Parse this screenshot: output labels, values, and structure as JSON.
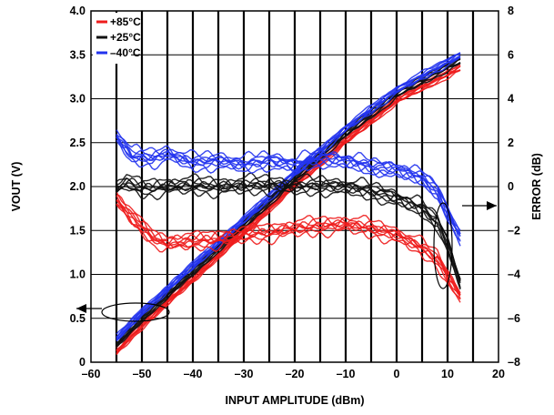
{
  "chart_data": {
    "type": "line",
    "xlabel": "INPUT AMPLITUDE (dBm)",
    "ylabel": "VOUT (V)",
    "y2label": "ERROR (dB)",
    "xlim": [
      -60,
      20
    ],
    "ylim": [
      0,
      4.0
    ],
    "y2lim": [
      -8,
      8
    ],
    "x_ticks": [
      "–60",
      "–50",
      "–40",
      "–30",
      "–20",
      "–10",
      "0",
      "10",
      "20"
    ],
    "y_ticks": [
      "0",
      "0.5",
      "1.0",
      "1.5",
      "2.0",
      "2.5",
      "3.0",
      "3.5",
      "4.0"
    ],
    "y2_ticks": [
      "–8",
      "–6",
      "–4",
      "–2",
      "0",
      "2",
      "4",
      "6",
      "8"
    ],
    "grid": true,
    "legend_position": "top-left",
    "series": [
      {
        "name": "+85°C",
        "color": "#ee1c1c",
        "axis": "left",
        "x": [
          -55,
          -50,
          -40,
          -30,
          -20,
          -10,
          0,
          10,
          12.5
        ],
        "values": [
          0.12,
          0.42,
          0.95,
          1.48,
          2.02,
          2.52,
          2.98,
          3.28,
          3.35
        ]
      },
      {
        "name": "+25°C",
        "color": "#111111",
        "axis": "left",
        "x": [
          -55,
          -50,
          -40,
          -30,
          -20,
          -10,
          0,
          10,
          12.5
        ],
        "values": [
          0.2,
          0.5,
          1.03,
          1.56,
          2.09,
          2.6,
          3.05,
          3.36,
          3.43
        ]
      },
      {
        "name": "–40°C",
        "color": "#2233ee",
        "axis": "left",
        "x": [
          -55,
          -50,
          -40,
          -30,
          -20,
          -10,
          0,
          10,
          12.5
        ],
        "values": [
          0.27,
          0.57,
          1.1,
          1.62,
          2.15,
          2.66,
          3.1,
          3.42,
          3.5
        ]
      },
      {
        "name": "+85°C error",
        "color": "#ee1c1c",
        "axis": "right",
        "x": [
          -55,
          -52,
          -48,
          -45,
          -40,
          -35,
          -30,
          -25,
          -20,
          -15,
          -10,
          -5,
          0,
          5,
          8,
          10,
          12.5
        ],
        "values": [
          -0.6,
          -1.4,
          -2.3,
          -2.6,
          -2.5,
          -2.4,
          -2.2,
          -2.1,
          -1.9,
          -1.8,
          -1.7,
          -1.9,
          -2.2,
          -2.8,
          -3.3,
          -4.1,
          -5.0
        ]
      },
      {
        "name": "+25°C error",
        "color": "#111111",
        "axis": "right",
        "x": [
          -55,
          -53,
          -50,
          -45,
          -40,
          -35,
          -30,
          -25,
          -20,
          -15,
          -10,
          -5,
          0,
          5,
          8,
          10,
          12.5
        ],
        "values": [
          -0.1,
          0.2,
          -0.1,
          0.0,
          0.05,
          0.0,
          0.05,
          0.1,
          0.0,
          0.05,
          0.0,
          -0.2,
          -0.5,
          -1.0,
          -1.6,
          -2.6,
          -4.4
        ]
      },
      {
        "name": "–40°C error",
        "color": "#2233ee",
        "axis": "right",
        "x": [
          -55,
          -52,
          -48,
          -45,
          -40,
          -35,
          -30,
          -25,
          -20,
          -15,
          -10,
          -5,
          0,
          5,
          8,
          10,
          12.5
        ],
        "values": [
          2.3,
          1.4,
          1.3,
          1.5,
          1.1,
          1.2,
          1.0,
          1.2,
          1.0,
          1.3,
          1.2,
          0.9,
          0.8,
          0.4,
          -0.2,
          -1.2,
          -2.3
        ]
      }
    ]
  }
}
